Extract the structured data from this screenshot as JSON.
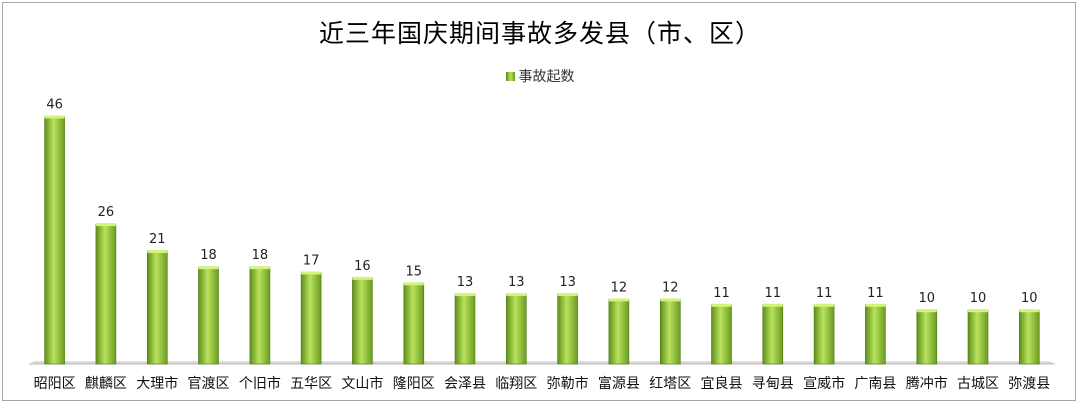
{
  "chart_data": {
    "type": "bar",
    "title": "近三年国庆期间事故多发县（市、区）",
    "legend": [
      "事故起数"
    ],
    "legend_position": "top",
    "categories": [
      "昭阳区",
      "麒麟区",
      "大理市",
      "官渡区",
      "个旧市",
      "五华区",
      "文山市",
      "隆阳区",
      "会泽县",
      "临翔区",
      "弥勒市",
      "富源县",
      "红塔区",
      "宜良县",
      "寻甸县",
      "宣威市",
      "广南县",
      "腾冲市",
      "古城区",
      "弥渡县"
    ],
    "series": [
      {
        "name": "事故起数",
        "values": [
          46,
          26,
          21,
          18,
          18,
          17,
          16,
          15,
          13,
          13,
          13,
          12,
          12,
          11,
          11,
          11,
          11,
          10,
          10,
          10
        ]
      }
    ],
    "ylim": [
      0,
      50
    ],
    "grid": false,
    "bar_color": "#8cbf34",
    "bar_highlight": "#c6ec6c",
    "bar_shadow": "#4f7a12"
  }
}
